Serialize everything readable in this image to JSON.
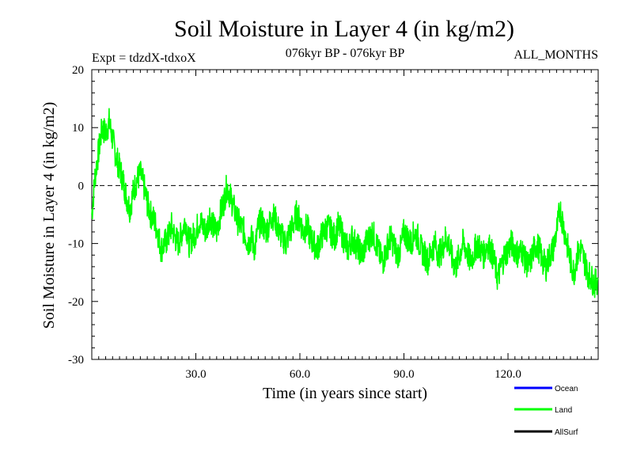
{
  "chart_data": {
    "type": "line",
    "title": "Soil Moisture in Layer 4 (in kg/m2)",
    "subtitle_left": "Expt = tdzdX-tdxoX",
    "subtitle_center": "076kyr BP - 076kyr BP",
    "subtitle_right": "ALL_MONTHS",
    "xlabel": "Time (in years since start)",
    "ylabel": "Soil Moisture in Layer 4 (in kg/m2)",
    "xlim": [
      0,
      146
    ],
    "ylim": [
      -30,
      20
    ],
    "x_ticks": [
      30,
      60,
      90,
      120
    ],
    "x_tick_labels": [
      "30.0",
      "60.0",
      "90.0",
      "120.0"
    ],
    "y_ticks": [
      -30,
      -20,
      -10,
      0,
      10,
      20
    ],
    "y_tick_labels": [
      "-30",
      "-20",
      "-10",
      "0",
      "10",
      "20"
    ],
    "reference_line": 0,
    "legend": [
      {
        "name": "Ocean",
        "color": "#0000ff"
      },
      {
        "name": "Land",
        "color": "#00ff00"
      },
      {
        "name": "AllSurf",
        "color": "#000000"
      }
    ],
    "series": [
      {
        "name": "Land",
        "color": "#00ff00",
        "x_start": 0,
        "x_step": 1,
        "values": [
          -5,
          2,
          6,
          10,
          9,
          11,
          8,
          5,
          3,
          1,
          -2,
          -4,
          -1,
          1,
          2,
          0,
          -3,
          -5,
          -6,
          -8,
          -11,
          -10,
          -9,
          -7,
          -9,
          -10,
          -8,
          -6,
          -10,
          -9,
          -8,
          -6,
          -7,
          -8,
          -5,
          -7,
          -8,
          -5,
          -3,
          0,
          -2,
          -4,
          -6,
          -7,
          -8,
          -10,
          -9,
          -11,
          -7,
          -6,
          -8,
          -7,
          -5,
          -6,
          -8,
          -9,
          -10,
          -8,
          -7,
          -5,
          -6,
          -8,
          -7,
          -9,
          -10,
          -11,
          -9,
          -8,
          -7,
          -8,
          -9,
          -7,
          -8,
          -10,
          -11,
          -9,
          -10,
          -11,
          -12,
          -10,
          -9,
          -8,
          -10,
          -12,
          -13,
          -11,
          -9,
          -10,
          -12,
          -11,
          -8,
          -9,
          -10,
          -8,
          -9,
          -11,
          -12,
          -13,
          -11,
          -10,
          -12,
          -11,
          -9,
          -10,
          -13,
          -14,
          -12,
          -10,
          -11,
          -13,
          -12,
          -10,
          -11,
          -12,
          -10,
          -11,
          -13,
          -16,
          -14,
          -12,
          -11,
          -10,
          -11,
          -12,
          -11,
          -13,
          -14,
          -12,
          -10,
          -11,
          -13,
          -14,
          -12,
          -11,
          -8,
          -4,
          -7,
          -10,
          -13,
          -15,
          -12,
          -11,
          -13,
          -15,
          -16,
          -17,
          -16
        ]
      }
    ]
  }
}
